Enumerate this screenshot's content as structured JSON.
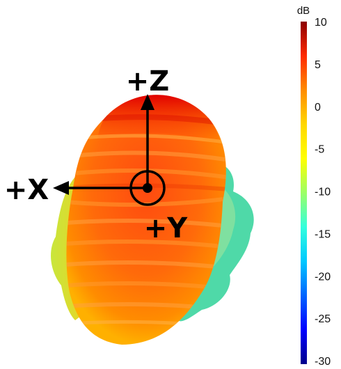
{
  "figure": {
    "axes": {
      "z_label": "+Z",
      "x_label": "+X",
      "y_label": "+Y"
    }
  },
  "colorbar": {
    "unit": "dB",
    "ticks": [
      "10",
      "5",
      "0",
      "-5",
      "-10",
      "-15",
      "-20",
      "-25",
      "-30"
    ],
    "range": [
      -30,
      10
    ],
    "colors": [
      "#8b0000",
      "#ff2a00",
      "#ff8c00",
      "#ffd700",
      "#ffff00",
      "#9cff66",
      "#33ffdd",
      "#00c8ff",
      "#0064ff",
      "#0000ff",
      "#00008b"
    ]
  }
}
